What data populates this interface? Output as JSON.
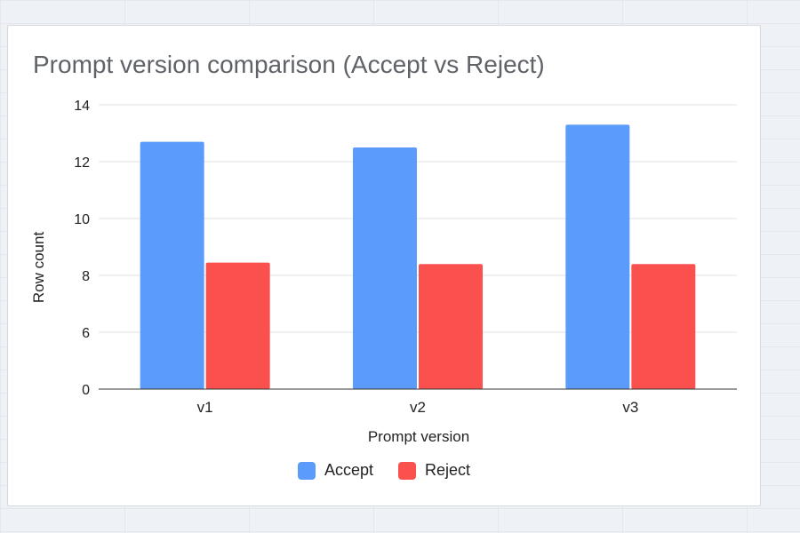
{
  "chart_data": {
    "type": "bar",
    "title": "Prompt version comparison (Accept vs Reject)",
    "xlabel": "Prompt version",
    "ylabel": "Row count",
    "categories": [
      "v1",
      "v2",
      "v3"
    ],
    "series": [
      {
        "name": "Accept",
        "color": "#5b9bfa",
        "values": [
          12.7,
          12.5,
          13.3
        ]
      },
      {
        "name": "Reject",
        "color": "#fa514f",
        "values": [
          8.45,
          8.4,
          8.4
        ]
      }
    ],
    "y_ticks": [
      "0",
      "6",
      "8",
      "10",
      "12",
      "14"
    ],
    "grid": true,
    "legend_position": "bottom"
  }
}
